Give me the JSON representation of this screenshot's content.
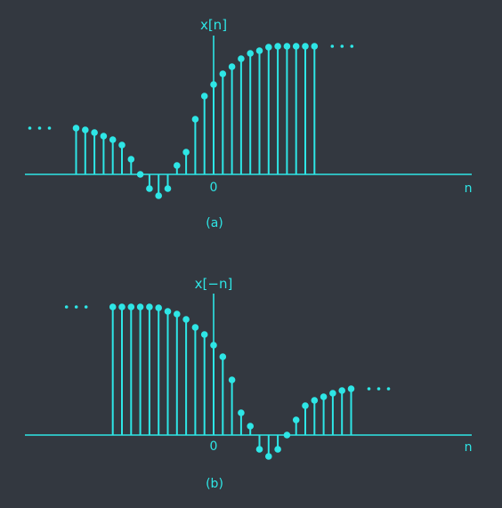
{
  "colors": {
    "background": "#333840",
    "signal": "#2ee6e6"
  },
  "panels": [
    {
      "id": "a",
      "signal_label": "x[n]",
      "origin_label": "0",
      "axis_label": "n",
      "caption": "(a)",
      "n": [
        -15,
        -14,
        -13,
        -12,
        -11,
        -10,
        -9,
        -8,
        -7,
        -6,
        -5,
        -4,
        -3,
        -2,
        -1,
        0,
        1,
        2,
        3,
        4,
        5,
        6,
        7,
        8,
        9,
        10,
        11
      ],
      "values": [
        52,
        50,
        47,
        43,
        39,
        33,
        17,
        0,
        -16,
        -24,
        -16,
        10,
        25,
        62,
        88,
        101,
        113,
        121,
        130,
        136,
        139,
        143,
        144,
        144,
        144,
        144,
        144
      ],
      "continues_left": true,
      "continues_right": true
    },
    {
      "id": "b",
      "signal_label": "x[−n]",
      "origin_label": "0",
      "axis_label": "n",
      "caption": "(b)",
      "n": [
        -11,
        -10,
        -9,
        -8,
        -7,
        -6,
        -5,
        -4,
        -3,
        -2,
        -1,
        0,
        1,
        2,
        3,
        4,
        5,
        6,
        7,
        8,
        9,
        10,
        11,
        12,
        13,
        14,
        15
      ],
      "values": [
        144,
        144,
        144,
        144,
        144,
        143,
        139,
        136,
        130,
        121,
        113,
        101,
        88,
        62,
        25,
        10,
        -16,
        -24,
        -16,
        0,
        17,
        33,
        39,
        43,
        47,
        50,
        52
      ],
      "continues_left": true,
      "continues_right": true
    }
  ]
}
